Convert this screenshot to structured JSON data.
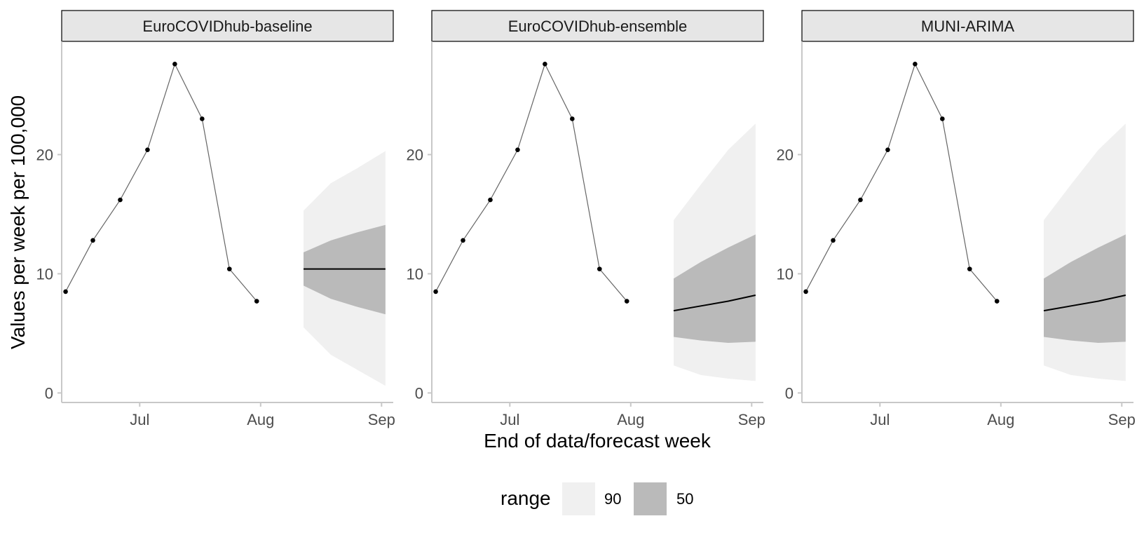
{
  "chart_data": {
    "type": "line",
    "ylabel": "Values per week per 100,000",
    "xlabel": "End of data/forecast week",
    "x_ticks": [
      {
        "date": "2021-07-01",
        "label": "Jul"
      },
      {
        "date": "2021-08-01",
        "label": "Aug"
      },
      {
        "date": "2021-09-01",
        "label": "Sep"
      }
    ],
    "y_ticks": [
      0,
      10,
      20
    ],
    "xlim": [
      "2021-06-11",
      "2021-09-04"
    ],
    "legend": {
      "title": "range",
      "position": "bottom",
      "items": [
        {
          "label": "90",
          "color": "#f0f0f0"
        },
        {
          "label": "50",
          "color": "#bababa"
        }
      ]
    },
    "colors": {
      "band90": "#f0f0f0",
      "band50": "#bababa",
      "median": "#000000",
      "observed": "#666666",
      "point": "#000000"
    },
    "panels": [
      {
        "title": "EuroCOVIDhub-baseline",
        "ylim": [
          -0.8,
          29.5
        ],
        "observed": {
          "dates": [
            "2021-06-12",
            "2021-06-19",
            "2021-06-26",
            "2021-07-03",
            "2021-07-10",
            "2021-07-17",
            "2021-07-24",
            "2021-07-31"
          ],
          "values": [
            8.5,
            12.8,
            16.2,
            20.4,
            27.6,
            23.0,
            10.4,
            7.7
          ]
        },
        "forecast": {
          "dates": [
            "2021-08-12",
            "2021-08-19",
            "2021-08-26",
            "2021-09-02"
          ],
          "median": [
            10.4,
            10.4,
            10.4,
            10.4
          ],
          "lower50": [
            9.0,
            7.9,
            7.2,
            6.6
          ],
          "upper50": [
            11.8,
            12.8,
            13.5,
            14.1
          ],
          "lower90": [
            5.5,
            3.2,
            1.9,
            0.6
          ],
          "upper90": [
            15.3,
            17.6,
            18.9,
            20.3
          ]
        }
      },
      {
        "title": "EuroCOVIDhub-ensemble",
        "ylim": [
          -0.8,
          29.5
        ],
        "observed": {
          "dates": [
            "2021-06-12",
            "2021-06-19",
            "2021-06-26",
            "2021-07-03",
            "2021-07-10",
            "2021-07-17",
            "2021-07-24",
            "2021-07-31"
          ],
          "values": [
            8.5,
            12.8,
            16.2,
            20.4,
            27.6,
            23.0,
            10.4,
            7.7
          ]
        },
        "forecast": {
          "dates": [
            "2021-08-12",
            "2021-08-19",
            "2021-08-26",
            "2021-09-02"
          ],
          "median": [
            6.9,
            7.3,
            7.7,
            8.2
          ],
          "lower50": [
            4.7,
            4.4,
            4.2,
            4.3
          ],
          "upper50": [
            9.6,
            11.0,
            12.2,
            13.3
          ],
          "lower90": [
            2.3,
            1.5,
            1.2,
            1.0
          ],
          "upper90": [
            14.5,
            17.5,
            20.4,
            22.6
          ]
        }
      },
      {
        "title": "MUNI-ARIMA",
        "ylim": [
          -0.8,
          29.5
        ],
        "observed": {
          "dates": [
            "2021-06-12",
            "2021-06-19",
            "2021-06-26",
            "2021-07-03",
            "2021-07-10",
            "2021-07-17",
            "2021-07-24",
            "2021-07-31"
          ],
          "values": [
            8.5,
            12.8,
            16.2,
            20.4,
            27.6,
            23.0,
            10.4,
            7.7
          ]
        },
        "forecast": {
          "dates": [
            "2021-08-12",
            "2021-08-19",
            "2021-08-26",
            "2021-09-02"
          ],
          "median": [
            6.9,
            7.3,
            7.7,
            8.2
          ],
          "lower50": [
            4.7,
            4.4,
            4.2,
            4.3
          ],
          "upper50": [
            9.6,
            11.0,
            12.2,
            13.3
          ],
          "lower90": [
            2.3,
            1.5,
            1.2,
            1.0
          ],
          "upper90": [
            14.5,
            17.5,
            20.4,
            22.6
          ]
        }
      }
    ]
  }
}
